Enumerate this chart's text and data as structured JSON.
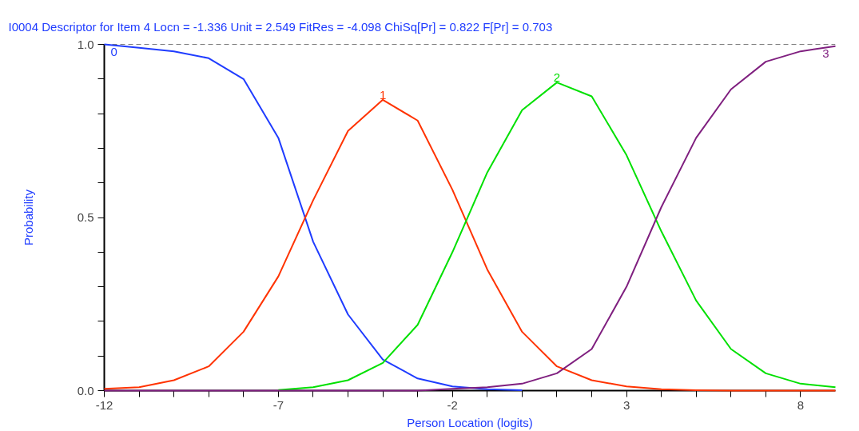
{
  "chart_data": {
    "type": "line",
    "title": "I0004  Descriptor for Item 4      Locn = -1.336      Unit = 2.549      FitRes = -4.098      ChiSq[Pr] = 0.822      F[Pr] = 0.703",
    "xlabel": "Person Location (logits)",
    "ylabel": "Probability",
    "x": [
      -12,
      -11,
      -10,
      -9,
      -8,
      -7,
      -6,
      -5,
      -4,
      -3,
      -2,
      -1,
      0,
      1,
      2,
      3,
      4,
      5,
      6,
      7,
      8,
      9
    ],
    "series": [
      {
        "name": "0",
        "color": "#1f3cff",
        "values": [
          1.0,
          0.99,
          0.98,
          0.96,
          0.9,
          0.73,
          0.43,
          0.22,
          0.09,
          0.035,
          0.012,
          0.004,
          0.001,
          null,
          null,
          null,
          null,
          null,
          null,
          null,
          null,
          null
        ]
      },
      {
        "name": "1",
        "color": "#ff3300",
        "values": [
          0.005,
          0.01,
          0.03,
          0.07,
          0.17,
          0.33,
          0.55,
          0.75,
          0.84,
          0.78,
          0.58,
          0.35,
          0.17,
          0.07,
          0.03,
          0.012,
          0.004,
          0.001,
          0,
          0,
          0,
          0
        ]
      },
      {
        "name": "2",
        "color": "#00e000",
        "values": [
          null,
          null,
          null,
          null,
          null,
          0.002,
          0.01,
          0.03,
          0.08,
          0.19,
          0.4,
          0.63,
          0.81,
          0.89,
          0.85,
          0.68,
          0.46,
          0.26,
          0.12,
          0.05,
          0.02,
          0.01
        ]
      },
      {
        "name": "3",
        "color": "#7f1f7f",
        "values": [
          0,
          0,
          0,
          0,
          0,
          0,
          0,
          0,
          0,
          0,
          0.005,
          0.01,
          0.02,
          0.05,
          0.12,
          0.3,
          0.53,
          0.73,
          0.87,
          0.95,
          0.98,
          0.995
        ]
      }
    ],
    "xlim": [
      -12,
      9
    ],
    "ylim": [
      0,
      1
    ],
    "xticks": [
      -12,
      {
        "value": -11,
        "label": null
      },
      {
        "value": -10,
        "label": null
      },
      {
        "value": -9,
        "label": null
      },
      {
        "value": -8,
        "label": null
      },
      -7,
      {
        "value": -6,
        "label": null
      },
      {
        "value": -5,
        "label": null
      },
      {
        "value": -4,
        "label": null
      },
      {
        "value": -3,
        "label": null
      },
      -2,
      {
        "value": -1,
        "label": null
      },
      {
        "value": 0,
        "label": null
      },
      {
        "value": 1,
        "label": null
      },
      {
        "value": 2,
        "label": null
      },
      3,
      {
        "value": 4,
        "label": null
      },
      {
        "value": 5,
        "label": null
      },
      {
        "value": 6,
        "label": null
      },
      {
        "value": 7,
        "label": null
      },
      8
    ],
    "yticks": [
      {
        "value": 0,
        "label": "0.0"
      },
      {
        "value": 0.1,
        "label": null
      },
      {
        "value": 0.2,
        "label": null
      },
      {
        "value": 0.3,
        "label": null
      },
      {
        "value": 0.4,
        "label": null
      },
      {
        "value": 0.5,
        "label": "0.5"
      },
      {
        "value": 0.6,
        "label": null
      },
      {
        "value": 0.7,
        "label": null
      },
      {
        "value": 0.8,
        "label": null
      },
      {
        "value": 0.9,
        "label": null
      },
      {
        "value": 1,
        "label": "1.0"
      }
    ],
    "ref_lines": [
      {
        "axis": "y",
        "value": 1,
        "color": "#000000",
        "line_style": "dashed"
      }
    ],
    "grid": false,
    "marker": "none",
    "line_style": "solid"
  }
}
